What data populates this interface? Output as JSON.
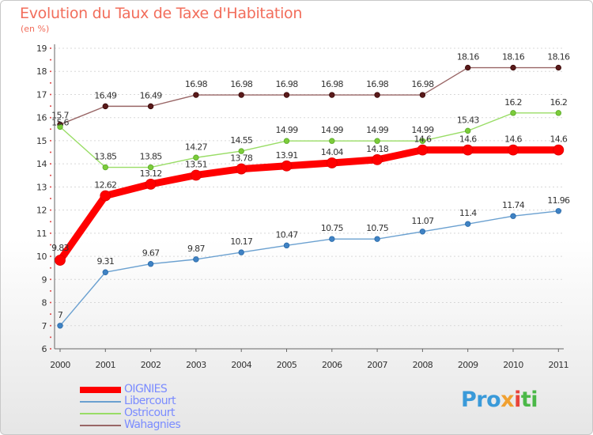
{
  "header": {
    "title": "Evolution du Taux de Taxe d'Habitation",
    "unit": "(en %)"
  },
  "chart_data": {
    "type": "line",
    "title": "Evolution du Taux de Taxe d'Habitation",
    "subtitle": "(en %)",
    "x": [
      "2000",
      "2001",
      "2002",
      "2003",
      "2004",
      "2005",
      "2006",
      "2007",
      "2008",
      "2009",
      "2010",
      "2011"
    ],
    "ylim": [
      6,
      19
    ],
    "yticks": [
      6,
      7,
      8,
      9,
      10,
      11,
      12,
      13,
      14,
      15,
      16,
      17,
      18,
      19
    ],
    "grid": "horizontal",
    "legend_position": "bottom-left",
    "series": [
      {
        "name": "OIGNIES",
        "color": "#ff0000",
        "values": [
          9.83,
          12.62,
          13.12,
          13.51,
          13.78,
          13.91,
          14.04,
          14.18,
          14.6,
          14.6,
          14.6,
          14.6
        ],
        "labels": [
          "9.83",
          "12.62",
          "13.12",
          "13.51",
          "13.78",
          "13.91",
          "14.04",
          "14.18",
          "14.6",
          "14.6",
          "14.6",
          "14.6"
        ]
      },
      {
        "name": "Libercourt",
        "color": "#6aa0d0",
        "values": [
          7,
          9.31,
          9.67,
          9.87,
          10.17,
          10.47,
          10.75,
          10.75,
          11.07,
          11.4,
          11.74,
          11.96
        ],
        "labels": [
          "7",
          "9.31",
          "9.67",
          "9.87",
          "10.17",
          "10.47",
          "10.75",
          "10.75",
          "11.07",
          "11.4",
          "11.74",
          "11.96"
        ]
      },
      {
        "name": "Ostricourt",
        "color": "#99dd66",
        "values": [
          15.6,
          13.85,
          13.85,
          14.27,
          14.55,
          14.99,
          14.99,
          14.99,
          14.99,
          15.43,
          16.2,
          16.2
        ],
        "labels": [
          "15.6",
          "13.85",
          "13.85",
          "14.27",
          "14.55",
          "14.99",
          "14.99",
          "14.99",
          "14.99",
          "15.43",
          "16.2",
          "16.2"
        ]
      },
      {
        "name": "Wahagnies",
        "color": "#996666",
        "values": [
          15.7,
          16.49,
          16.49,
          16.98,
          16.98,
          16.98,
          16.98,
          16.98,
          16.98,
          18.16,
          18.16,
          18.16
        ],
        "labels": [
          "15.7",
          "16.49",
          "16.49",
          "16.98",
          "16.98",
          "16.98",
          "16.98",
          "16.98",
          "16.98",
          "18.16",
          "18.16",
          "18.16"
        ]
      }
    ]
  },
  "logo": {
    "letters": [
      "Pro",
      "x",
      "i",
      "ti"
    ]
  }
}
